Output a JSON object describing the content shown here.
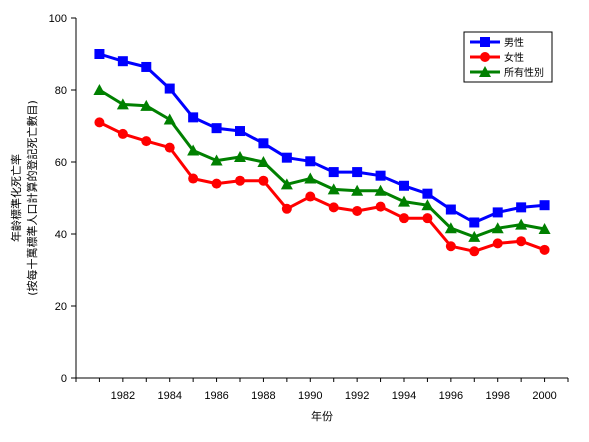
{
  "chart_data": {
    "type": "line",
    "xlabel": "年份",
    "ylabel_lines": [
      "年齡標準化死亡率",
      "(按每十萬標準人口計算的登記死亡數目)"
    ],
    "ylim": [
      0,
      100
    ],
    "yticks": [
      0,
      20,
      40,
      60,
      80,
      100
    ],
    "xlim": [
      1980,
      2001
    ],
    "xticks": [
      1982,
      1984,
      1986,
      1988,
      1990,
      1992,
      1994,
      1996,
      1998,
      2000
    ],
    "grid": false,
    "legend": "top-right",
    "x": [
      1981,
      1982,
      1983,
      1984,
      1985,
      1986,
      1987,
      1988,
      1989,
      1990,
      1991,
      1992,
      1993,
      1994,
      1995,
      1996,
      1997,
      1998,
      1999,
      2000
    ],
    "series": [
      {
        "name": "男性",
        "color": "#0000ff",
        "marker": "square",
        "values": [
          90,
          88,
          86.4,
          80.4,
          72.4,
          69.4,
          68.6,
          65.2,
          61.2,
          60.2,
          57.2,
          57.2,
          56.2,
          53.4,
          51.2,
          46.8,
          43.2,
          46,
          47.4,
          48
        ]
      },
      {
        "name": "女性",
        "color": "#ff0000",
        "marker": "circle",
        "values": [
          71,
          67.8,
          65.8,
          64,
          55.4,
          54,
          54.8,
          54.8,
          47,
          50.4,
          47.4,
          46.4,
          47.6,
          44.4,
          44.4,
          36.6,
          35.2,
          37.4,
          38,
          35.6
        ]
      },
      {
        "name": "所有性別",
        "color": "#008000",
        "marker": "triangle",
        "values": [
          80,
          76,
          75.6,
          71.8,
          63.2,
          60.4,
          61.4,
          60,
          53.8,
          55.4,
          52.4,
          52,
          52,
          49,
          48,
          41.6,
          39.2,
          41.6,
          42.6,
          41.4
        ]
      }
    ]
  }
}
